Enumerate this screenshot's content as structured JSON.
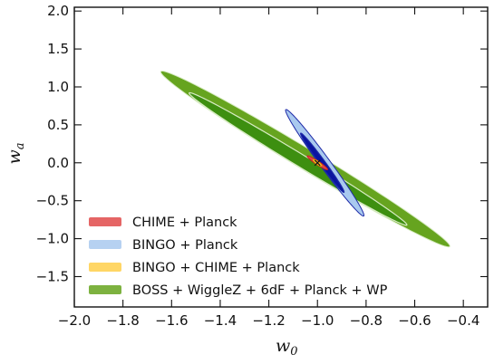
{
  "chart_data": {
    "type": "contour",
    "xlabel": "w",
    "xlabel_sub": "0",
    "ylabel": "w",
    "ylabel_sub": "a",
    "xlim": [
      -2.0,
      -0.3
    ],
    "ylim": [
      -1.9,
      2.05
    ],
    "xticks": [
      -2.0,
      -1.8,
      -1.6,
      -1.4,
      -1.2,
      -1.0,
      -0.8,
      -0.6,
      -0.4
    ],
    "xtick_labels": [
      "−2.0",
      "−1.8",
      "−1.6",
      "−1.4",
      "−1.2",
      "−1.0",
      "−0.8",
      "−0.6",
      "−0.4"
    ],
    "yticks": [
      2.0,
      1.5,
      1.0,
      0.5,
      0.0,
      -0.5,
      -1.0,
      -1.5
    ],
    "ytick_labels": [
      "2.0",
      "1.5",
      "1.0",
      "0.5",
      "0.0",
      "−0.5",
      "−1.0",
      "−1.5"
    ],
    "fiducial": {
      "w0": -1.0,
      "wa": 0.0
    },
    "legend_position": "lower-left",
    "series": [
      {
        "name": "BOSS + WiggleZ + 6dF + Planck + WP",
        "outer_color": "#66a41f",
        "inner_color": "#3d8f10",
        "line_color": "#d8ecc4",
        "contours": [
          {
            "level": "2sigma",
            "center": [
              -1.05,
              0.05
            ],
            "major_half_length": 1.3,
            "minor_half_length": 0.16,
            "slope": -1.95
          },
          {
            "level": "1sigma",
            "center": [
              -1.08,
              0.05
            ],
            "major_half_length": 0.98,
            "minor_half_length": 0.095,
            "slope": -1.95
          }
        ]
      },
      {
        "name": "BINGO + Planck",
        "outer_color": "#a9c9ef",
        "inner_color": "#0a14a0",
        "line_color": "#1e2aa8",
        "contours": [
          {
            "level": "2sigma",
            "center": [
              -0.97,
              0.0
            ],
            "major_half_length": 0.72,
            "minor_half_length": 0.075,
            "slope": -4.4
          },
          {
            "level": "1sigma",
            "center": [
              -0.98,
              0.0
            ],
            "major_half_length": 0.4,
            "minor_half_length": 0.04,
            "slope": -4.4
          }
        ]
      },
      {
        "name": "CHIME + Planck",
        "outer_color": "#e04a4a",
        "inner_color": "#e04a4a",
        "line_color": "#c92020",
        "contours": [
          {
            "level": "2sigma",
            "center": [
              -1.0,
              0.0
            ],
            "major_half_length": 0.1,
            "minor_half_length": 0.028,
            "slope": -2.2
          }
        ]
      },
      {
        "name": "BINGO + CHIME + Planck",
        "outer_color": "#ffcf4a",
        "inner_color": "#ffd75e",
        "line_color": "#e6a800",
        "contours": [
          {
            "level": "2sigma",
            "center": [
              -1.0,
              0.0
            ],
            "major_half_length": 0.045,
            "minor_half_length": 0.022,
            "slope": -2.6
          }
        ]
      }
    ],
    "legend_order": [
      "CHIME + Planck",
      "BINGO + Planck",
      "BINGO + CHIME + Planck",
      "BOSS + WiggleZ + 6dF + Planck + WP"
    ]
  }
}
